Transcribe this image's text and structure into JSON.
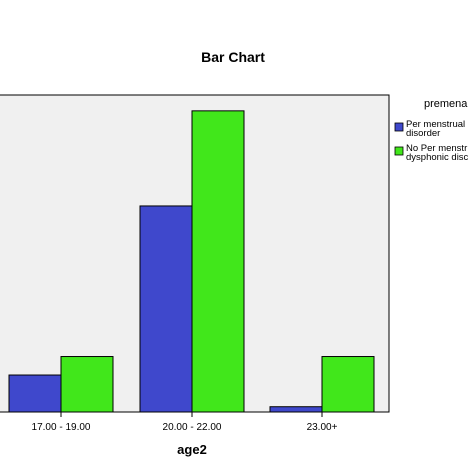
{
  "chart_data": {
    "type": "bar",
    "title": "Bar Chart",
    "xlabel": "age2",
    "ylabel": "",
    "categories": [
      "17.00 - 19.00",
      "20.00 - 22.00",
      "23.00+"
    ],
    "ylim": [
      0,
      60
    ],
    "series": [
      {
        "values": [
          7,
          39,
          1
        ],
        "color": "#3f48cc"
      },
      {
        "values": [
          10.5,
          57,
          10.5
        ],
        "color": "#41e71b"
      }
    ],
    "legend": {
      "title": "premena",
      "placement": "right",
      "entries": [
        {
          "lines": [
            "Per menstrual",
            "disorder"
          ],
          "color": "#3f48cc"
        },
        {
          "lines": [
            "No Per menstr",
            "dysphonic disc"
          ],
          "color": "#41e71b"
        }
      ]
    },
    "plot_background": "#f0f0f0",
    "grid": false
  }
}
